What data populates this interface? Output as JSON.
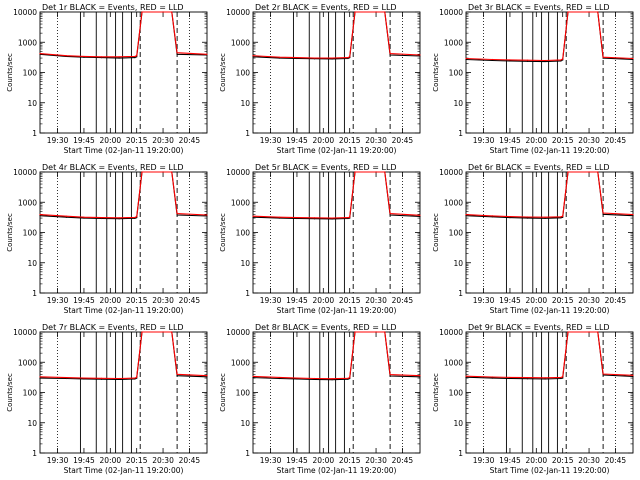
{
  "chart_data": [
    {
      "type": "line",
      "title": "Det 1r BLACK = Events, RED = LLD",
      "xlabel": "Start Time (02-Jan-11 19:20:00)",
      "ylabel": "Counts/sec",
      "ylog": true,
      "ylim": [
        1,
        10000
      ],
      "yticks": [
        "1",
        "10",
        "100",
        "1000",
        "10000"
      ],
      "xlim": [
        "19:20",
        "20:55"
      ],
      "xticks": [
        "19:30",
        "19:45",
        "20:00",
        "20:15",
        "20:30",
        "20:45"
      ],
      "series": [
        {
          "color": "#000000",
          "x": [
            "19:20",
            "19:35",
            "19:45",
            "19:55",
            "20:05",
            "20:14",
            "20:15",
            "20:18",
            "20:30",
            "20:35",
            "20:38",
            "20:55"
          ],
          "y": [
            400,
            340,
            320,
            310,
            300,
            310,
            330,
            10000,
            10000,
            10000,
            400,
            380
          ]
        },
        {
          "color": "#ff0000",
          "x": [
            "19:20",
            "19:35",
            "19:45",
            "19:55",
            "20:05",
            "20:14",
            "20:15",
            "20:18",
            "20:30",
            "20:35",
            "20:38",
            "20:55"
          ],
          "y": [
            420,
            360,
            340,
            330,
            330,
            340,
            360,
            10000,
            10000,
            10000,
            450,
            400
          ]
        }
      ]
    },
    {
      "type": "line",
      "title": "Det 2r BLACK = Events, RED = LLD",
      "xlabel": "Start Time (02-Jan-11 19:20:00)",
      "ylabel": "Counts/sec",
      "ylog": true,
      "ylim": [
        1,
        10000
      ],
      "yticks": [
        "1",
        "10",
        "100",
        "1000",
        "10000"
      ],
      "xlim": [
        "19:20",
        "20:55"
      ],
      "xticks": [
        "19:30",
        "19:45",
        "20:00",
        "20:15",
        "20:30",
        "20:45"
      ],
      "series": [
        {
          "color": "#000000",
          "x": [
            "19:20",
            "19:35",
            "19:45",
            "19:55",
            "20:05",
            "20:14",
            "20:15",
            "20:18",
            "20:30",
            "20:35",
            "20:38",
            "20:55"
          ],
          "y": [
            330,
            300,
            290,
            285,
            280,
            290,
            310,
            10000,
            10000,
            10000,
            380,
            350
          ]
        },
        {
          "color": "#ff0000",
          "x": [
            "19:20",
            "19:35",
            "19:45",
            "19:55",
            "20:05",
            "20:14",
            "20:15",
            "20:18",
            "20:30",
            "20:35",
            "20:38",
            "20:55"
          ],
          "y": [
            360,
            320,
            310,
            300,
            300,
            310,
            330,
            10000,
            10000,
            10000,
            420,
            380
          ]
        }
      ]
    },
    {
      "type": "line",
      "title": "Det 3r BLACK = Events, RED = LLD",
      "xlabel": "Start Time (02-Jan-11 19:20:00)",
      "ylabel": "Counts/sec",
      "ylog": true,
      "ylim": [
        1,
        10000
      ],
      "yticks": [
        "1",
        "10",
        "100",
        "1000",
        "10000"
      ],
      "xlim": [
        "19:20",
        "20:55"
      ],
      "xticks": [
        "19:30",
        "19:45",
        "20:00",
        "20:15",
        "20:30",
        "20:45"
      ],
      "series": [
        {
          "color": "#000000",
          "x": [
            "19:20",
            "19:35",
            "19:45",
            "19:55",
            "20:05",
            "20:14",
            "20:15",
            "20:18",
            "20:30",
            "20:35",
            "20:38",
            "20:55"
          ],
          "y": [
            270,
            250,
            240,
            235,
            230,
            240,
            260,
            10000,
            10000,
            10000,
            300,
            270
          ]
        },
        {
          "color": "#ff0000",
          "x": [
            "19:20",
            "19:35",
            "19:45",
            "19:55",
            "20:05",
            "20:14",
            "20:15",
            "20:18",
            "20:30",
            "20:35",
            "20:38",
            "20:55"
          ],
          "y": [
            290,
            270,
            260,
            255,
            250,
            260,
            280,
            10000,
            10000,
            10000,
            320,
            290
          ]
        }
      ]
    },
    {
      "type": "line",
      "title": "Det 4r BLACK = Events, RED = LLD",
      "xlabel": "Start Time (02-Jan-11 19:20:00)",
      "ylabel": "Counts/sec",
      "ylog": true,
      "ylim": [
        1,
        10000
      ],
      "yticks": [
        "1",
        "10",
        "100",
        "1000",
        "10000"
      ],
      "xlim": [
        "19:20",
        "20:55"
      ],
      "xticks": [
        "19:30",
        "19:45",
        "20:00",
        "20:15",
        "20:30",
        "20:45"
      ],
      "series": [
        {
          "color": "#000000",
          "x": [
            "19:20",
            "19:35",
            "19:45",
            "19:55",
            "20:05",
            "20:14",
            "20:15",
            "20:18",
            "20:30",
            "20:35",
            "20:38",
            "20:55"
          ],
          "y": [
            360,
            320,
            300,
            290,
            285,
            295,
            310,
            10000,
            10000,
            10000,
            380,
            350
          ]
        },
        {
          "color": "#ff0000",
          "x": [
            "19:20",
            "19:35",
            "19:45",
            "19:55",
            "20:05",
            "20:14",
            "20:15",
            "20:18",
            "20:30",
            "20:35",
            "20:38",
            "20:55"
          ],
          "y": [
            390,
            345,
            320,
            310,
            305,
            315,
            335,
            10000,
            10000,
            10000,
            420,
            380
          ]
        }
      ]
    },
    {
      "type": "line",
      "title": "Det 5r BLACK = Events, RED = LLD",
      "xlabel": "Start Time (02-Jan-11 19:20:00)",
      "ylabel": "Counts/sec",
      "ylog": true,
      "ylim": [
        1,
        10000
      ],
      "yticks": [
        "1",
        "10",
        "100",
        "1000",
        "10000"
      ],
      "xlim": [
        "19:20",
        "20:55"
      ],
      "xticks": [
        "19:30",
        "19:45",
        "20:00",
        "20:15",
        "20:30",
        "20:45"
      ],
      "series": [
        {
          "color": "#000000",
          "x": [
            "19:20",
            "19:35",
            "19:45",
            "19:55",
            "20:05",
            "20:14",
            "20:15",
            "20:18",
            "20:30",
            "20:35",
            "20:38",
            "20:55"
          ],
          "y": [
            320,
            300,
            290,
            285,
            280,
            290,
            300,
            10000,
            10000,
            10000,
            380,
            340
          ]
        },
        {
          "color": "#ff0000",
          "x": [
            "19:20",
            "19:35",
            "19:45",
            "19:55",
            "20:05",
            "20:14",
            "20:15",
            "20:18",
            "20:30",
            "20:35",
            "20:38",
            "20:55"
          ],
          "y": [
            345,
            320,
            310,
            305,
            300,
            310,
            320,
            10000,
            10000,
            10000,
            420,
            370
          ]
        }
      ]
    },
    {
      "type": "line",
      "title": "Det 6r BLACK = Events, RED = LLD",
      "xlabel": "Start Time (02-Jan-11 19:20:00)",
      "ylabel": "Counts/sec",
      "ylog": true,
      "ylim": [
        1,
        10000
      ],
      "yticks": [
        "1",
        "10",
        "100",
        "1000",
        "10000"
      ],
      "xlim": [
        "19:20",
        "20:55"
      ],
      "xticks": [
        "19:30",
        "19:45",
        "20:00",
        "20:15",
        "20:30",
        "20:45"
      ],
      "series": [
        {
          "color": "#000000",
          "x": [
            "19:20",
            "19:35",
            "19:45",
            "19:55",
            "20:05",
            "20:14",
            "20:15",
            "20:18",
            "20:30",
            "20:35",
            "20:38",
            "20:55"
          ],
          "y": [
            360,
            330,
            310,
            300,
            295,
            305,
            320,
            10000,
            10000,
            10000,
            400,
            360
          ]
        },
        {
          "color": "#ff0000",
          "x": [
            "19:20",
            "19:35",
            "19:45",
            "19:55",
            "20:05",
            "20:14",
            "20:15",
            "20:18",
            "20:30",
            "20:35",
            "20:38",
            "20:55"
          ],
          "y": [
            390,
            355,
            335,
            325,
            320,
            330,
            345,
            10000,
            10000,
            10000,
            440,
            390
          ]
        }
      ]
    },
    {
      "type": "line",
      "title": "Det 7r BLACK = Events, RED = LLD",
      "xlabel": "Start Time (02-Jan-11 19:20:00)",
      "ylabel": "Counts/sec",
      "ylog": true,
      "ylim": [
        1,
        10000
      ],
      "yticks": [
        "1",
        "10",
        "100",
        "1000",
        "10000"
      ],
      "xlim": [
        "19:20",
        "20:55"
      ],
      "xticks": [
        "19:30",
        "19:45",
        "20:00",
        "20:15",
        "20:30",
        "20:45"
      ],
      "series": [
        {
          "color": "#000000",
          "x": [
            "19:20",
            "19:35",
            "19:45",
            "19:55",
            "20:05",
            "20:14",
            "20:15",
            "20:18",
            "20:30",
            "20:35",
            "20:38",
            "20:55"
          ],
          "y": [
            300,
            290,
            280,
            275,
            270,
            280,
            300,
            10000,
            10000,
            10000,
            360,
            330
          ]
        },
        {
          "color": "#ff0000",
          "x": [
            "19:20",
            "19:35",
            "19:45",
            "19:55",
            "20:05",
            "20:14",
            "20:15",
            "20:18",
            "20:30",
            "20:35",
            "20:38",
            "20:55"
          ],
          "y": [
            330,
            310,
            300,
            295,
            290,
            300,
            320,
            10000,
            10000,
            10000,
            400,
            360
          ]
        }
      ]
    },
    {
      "type": "line",
      "title": "Det 8r BLACK = Events, RED = LLD",
      "xlabel": "Start Time (02-Jan-11 19:20:00)",
      "ylabel": "Counts/sec",
      "ylog": true,
      "ylim": [
        1,
        10000
      ],
      "yticks": [
        "1",
        "10",
        "100",
        "1000",
        "10000"
      ],
      "xlim": [
        "19:20",
        "20:55"
      ],
      "xticks": [
        "19:30",
        "19:45",
        "20:00",
        "20:15",
        "20:30",
        "20:45"
      ],
      "series": [
        {
          "color": "#000000",
          "x": [
            "19:20",
            "19:35",
            "19:45",
            "19:55",
            "20:05",
            "20:14",
            "20:15",
            "20:18",
            "20:30",
            "20:35",
            "20:38",
            "20:55"
          ],
          "y": [
            310,
            290,
            280,
            270,
            265,
            275,
            290,
            10000,
            10000,
            10000,
            350,
            330
          ]
        },
        {
          "color": "#ff0000",
          "x": [
            "19:20",
            "19:35",
            "19:45",
            "19:55",
            "20:05",
            "20:14",
            "20:15",
            "20:18",
            "20:30",
            "20:35",
            "20:38",
            "20:55"
          ],
          "y": [
            340,
            315,
            300,
            290,
            285,
            295,
            310,
            10000,
            10000,
            10000,
            390,
            360
          ]
        }
      ]
    },
    {
      "type": "line",
      "title": "Det 9r BLACK = Events, RED = LLD",
      "xlabel": "Start Time (02-Jan-11 19:20:00)",
      "ylabel": "Counts/sec",
      "ylog": true,
      "ylim": [
        1,
        10000
      ],
      "yticks": [
        "1",
        "10",
        "100",
        "1000",
        "10000"
      ],
      "xlim": [
        "19:20",
        "20:55"
      ],
      "xticks": [
        "19:30",
        "19:45",
        "20:00",
        "20:15",
        "20:30",
        "20:45"
      ],
      "series": [
        {
          "color": "#000000",
          "x": [
            "19:20",
            "19:35",
            "19:45",
            "19:55",
            "20:05",
            "20:14",
            "20:15",
            "20:18",
            "20:30",
            "20:35",
            "20:38",
            "20:55"
          ],
          "y": [
            320,
            300,
            290,
            285,
            280,
            290,
            300,
            10000,
            10000,
            10000,
            380,
            340
          ]
        },
        {
          "color": "#ff0000",
          "x": [
            "19:20",
            "19:35",
            "19:45",
            "19:55",
            "20:05",
            "20:14",
            "20:15",
            "20:18",
            "20:30",
            "20:35",
            "20:38",
            "20:55"
          ],
          "y": [
            345,
            325,
            315,
            310,
            305,
            315,
            330,
            10000,
            10000,
            10000,
            410,
            370
          ]
        }
      ]
    }
  ]
}
